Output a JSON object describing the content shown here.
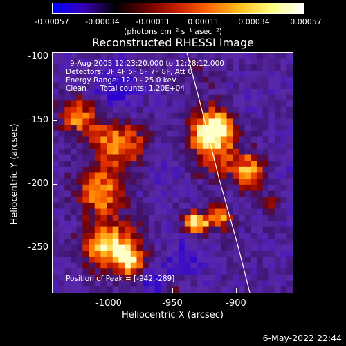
{
  "title": "Reconstructed RHESSI Image",
  "colorbar": {
    "ticks": [
      "-0.00057",
      "-0.00034",
      "-0.00011",
      "0.00011",
      "0.00034",
      "0.00057"
    ],
    "units": "(photons cm⁻² s⁻¹ asec⁻²)",
    "range": [
      -0.00057,
      0.00057
    ],
    "colormap": [
      "#0000ff",
      "#3a00b8",
      "#000000",
      "#6a0000",
      "#c81e00",
      "#ff6a00",
      "#ffc020",
      "#ffff80",
      "#ffffff"
    ]
  },
  "annotations": {
    "time_range": "9-Aug-2005 12:23:20.000 to 12:28:12.000",
    "detectors": "Detectors: 3F 4F 5F 6F 7F 8F, Att 0",
    "energy_range": "Energy Range: 12.0 - 25.0 keV",
    "algorithm": "Clean",
    "total_counts": "Total counts: 1.20E+04",
    "peak": "Position of Peak = [-942,-289]"
  },
  "axes": {
    "xlabel": "Heliocentric X (arcsec)",
    "ylabel": "Heliocentric Y (arcsec)",
    "xticks": [
      "-1000",
      "-950",
      "-900"
    ],
    "yticks": [
      "-100",
      "-150",
      "-200",
      "-250"
    ],
    "xrange": [
      -1050,
      -855
    ],
    "yrange": [
      -290,
      -95
    ]
  },
  "timestamp": "6-May-2022 22:44"
}
